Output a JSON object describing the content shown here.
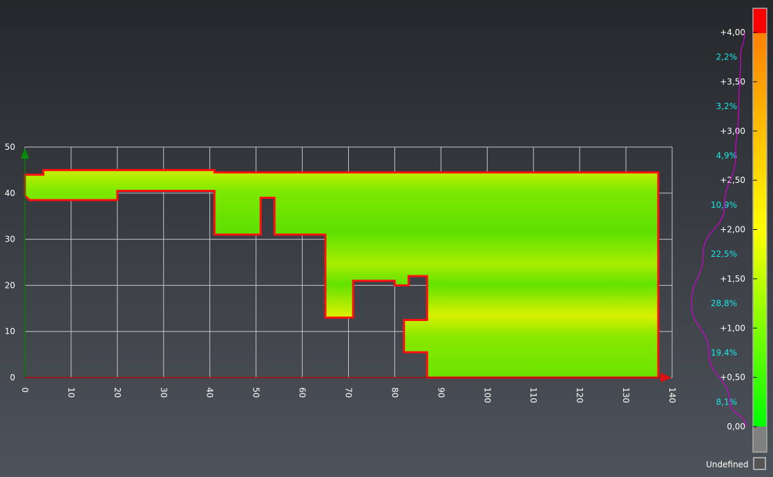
{
  "chart_data": {
    "type": "heatmap",
    "x_ticks": [
      "0",
      "10",
      "20",
      "30",
      "40",
      "50",
      "60",
      "70",
      "80",
      "90",
      "100",
      "110",
      "120",
      "130",
      "140"
    ],
    "y_ticks": [
      "0",
      "10",
      "20",
      "30",
      "40",
      "50"
    ],
    "xlim": [
      0,
      140
    ],
    "ylim": [
      0,
      50
    ],
    "grid": true,
    "surface_outline": [
      [
        0,
        44
      ],
      [
        4,
        44
      ],
      [
        4,
        45
      ],
      [
        41,
        45
      ],
      [
        41,
        44.5
      ],
      [
        137,
        44.5
      ],
      [
        137,
        0
      ],
      [
        87,
        0
      ],
      [
        87,
        5.5
      ],
      [
        82,
        5.5
      ],
      [
        82,
        12.5
      ],
      [
        87,
        12.5
      ],
      [
        87,
        22
      ],
      [
        83,
        22
      ],
      [
        83,
        20
      ],
      [
        80,
        20
      ],
      [
        80,
        21
      ],
      [
        71,
        21
      ],
      [
        71,
        13
      ],
      [
        65,
        13
      ],
      [
        65,
        31
      ],
      [
        54,
        31
      ],
      [
        54,
        39
      ],
      [
        51,
        39
      ],
      [
        51,
        31
      ],
      [
        41,
        31
      ],
      [
        41,
        40.5
      ],
      [
        20,
        40.5
      ],
      [
        20,
        38.5
      ],
      [
        1,
        38.5
      ],
      [
        0,
        39.5
      ]
    ],
    "color_scale": {
      "min": 0,
      "max": 4,
      "stops": [
        "#00ff00",
        "#ffff00",
        "#ff8000"
      ],
      "above_max_color": "#ff0000",
      "below_min_color": "#808080",
      "tick_labels": [
        "0,00",
        "+0,50",
        "+1,00",
        "+1,50",
        "+2,00",
        "+2,50",
        "+3,00",
        "+3,50",
        "+4,00"
      ],
      "histogram_percent": [
        "8,1%",
        "19,4%",
        "28,8%",
        "22,5%",
        "10,9%",
        "4,9%",
        "3,2%",
        "2,2%"
      ],
      "histogram_values": [
        8.1,
        19.4,
        28.8,
        22.5,
        10.9,
        4.9,
        3.2,
        2.2
      ],
      "histogram_color": "#cc00cc",
      "undefined_label": "Undefined"
    }
  }
}
